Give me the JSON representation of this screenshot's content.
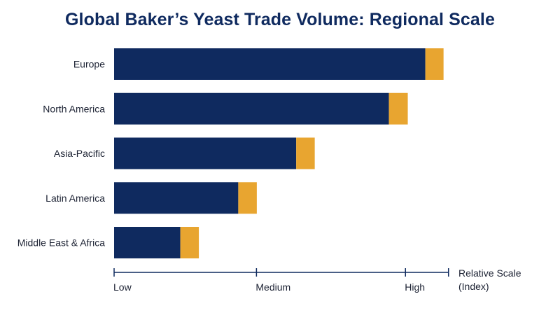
{
  "chart_data": {
    "type": "bar",
    "orientation": "horizontal",
    "stacked": true,
    "title": "Global Baker’s Yeast Trade Volume: Regional Scale",
    "categories": [
      "Europe",
      "North America",
      "Asia-Pacific",
      "Latin America",
      "Middle East & Africa"
    ],
    "series": [
      {
        "values": [
          94,
          83,
          55,
          37.5,
          20
        ],
        "color": "#0f2a5f"
      },
      {
        "values": [
          5.5,
          5.7,
          5.6,
          5.6,
          5.6
        ],
        "color": "#e8a530"
      }
    ],
    "xlim": [
      0,
      100
    ],
    "x_ticks": [
      {
        "value": 0,
        "label": "Low"
      },
      {
        "value": 43,
        "label": "Medium"
      },
      {
        "value": 88,
        "label": "High"
      }
    ],
    "x_axis_end": 101,
    "xlabel_lines": [
      "Relative Scale",
      "(Index)"
    ],
    "grid": false,
    "legend": "none",
    "axis_color": "#0f2a5f"
  }
}
